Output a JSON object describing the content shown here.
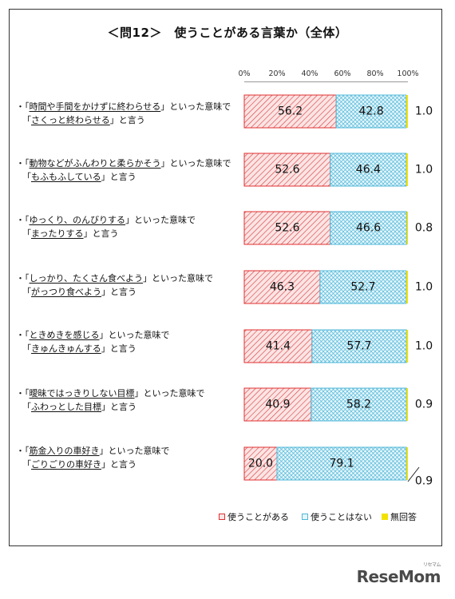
{
  "title": "＜問12＞　使うことがある言葉か（全体）",
  "chart_data": {
    "type": "bar",
    "stacked": true,
    "orientation": "horizontal",
    "title": "＜問12＞　使うことがある言葉か（全体）",
    "xlim": [
      0,
      100
    ],
    "x_ticks": [
      "0%",
      "20%",
      "40%",
      "60%",
      "80%",
      "100%"
    ],
    "categories": [
      "・「時間や手間をかけずに終わらせる」といった意味で「さくっと終わらせる」と言う",
      "・「動物などがふんわりと柔らかそう」といった意味で「もふもふしている」と言う",
      "・「ゆっくり、のんびりする」といった意味で「まったりする」と言う",
      "・「しっかり、たくさん食べよう」といった意味で「がっつり食べよう」と言う",
      "・「ときめきを感じる」といった意味で「きゅんきゅんする」と言う",
      "・「曖昧ではっきりしない目標」といった意味で「ふわっとした目標」と言う",
      "・「筋金入りの車好き」といった意味で「ごりごりの車好き」と言う"
    ],
    "series": [
      {
        "name": "使うことがある",
        "color": "#e03030",
        "values": [
          56.2,
          52.6,
          52.6,
          46.3,
          41.4,
          40.9,
          20.0
        ],
        "labels": [
          "56.2",
          "52.6",
          "52.6",
          "46.3",
          "41.4",
          "40.9",
          "20.0"
        ]
      },
      {
        "name": "使うことはない",
        "color": "#4fb7d8",
        "values": [
          42.8,
          46.4,
          46.6,
          52.7,
          57.7,
          58.2,
          79.1
        ],
        "labels": [
          "42.8",
          "46.4",
          "46.6",
          "52.7",
          "57.7",
          "58.2",
          "79.1"
        ]
      },
      {
        "name": "無回答",
        "color": "#f2e200",
        "values": [
          1.0,
          1.0,
          0.8,
          1.0,
          1.0,
          0.9,
          0.9
        ],
        "labels": [
          "1.0",
          "1.0",
          "0.8",
          "1.0",
          "1.0",
          "0.9",
          "0.9"
        ]
      }
    ],
    "legend_position": "bottom-right"
  },
  "rows": [
    {
      "l1a": "・「",
      "l1u": "時間や手間をかけずに終わらせる",
      "l1b": "」といった意味で",
      "l2a": "「",
      "l2u": "さくっと終わらせる",
      "l2b": "」と言う"
    },
    {
      "l1a": "・「",
      "l1u": "動物などがふんわりと柔らかそう",
      "l1b": "」といった意味で",
      "l2a": "「",
      "l2u": "もふもふしている",
      "l2b": "」と言う"
    },
    {
      "l1a": "・「",
      "l1u": "ゆっくり、のんびりする",
      "l1b": "」といった意味で",
      "l2a": "「",
      "l2u": "まったりする",
      "l2b": "」と言う"
    },
    {
      "l1a": "・「",
      "l1u": "しっかり、たくさん食べよう",
      "l1b": "」といった意味で",
      "l2a": "「",
      "l2u": "がっつり食べよう",
      "l2b": "」と言う"
    },
    {
      "l1a": "・「",
      "l1u": "ときめきを感じる",
      "l1b": "」といった意味で",
      "l2a": "「",
      "l2u": "きゅんきゅんする",
      "l2b": "」と言う"
    },
    {
      "l1a": "・「",
      "l1u": "曖昧ではっきりしない目標",
      "l1b": "」といった意味で",
      "l2a": "「",
      "l2u": "ふわっとした目標",
      "l2b": "」と言う"
    },
    {
      "l1a": "・「",
      "l1u": "筋金入りの車好き",
      "l1b": "」といった意味で",
      "l2a": "「",
      "l2u": "ごりごりの車好き",
      "l2b": "」と言う"
    }
  ],
  "legend": [
    "使うことがある",
    "使うことはない",
    "無回答"
  ],
  "logo": {
    "text": "ReseMom",
    "small": "リセマム"
  }
}
